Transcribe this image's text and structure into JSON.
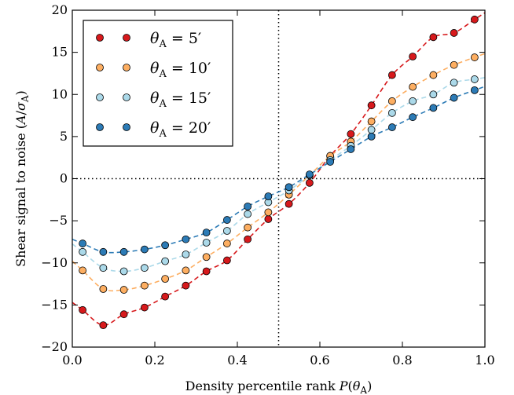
{
  "chart_data": {
    "type": "scatter",
    "xlabel": "Density percentile rank P(θ_A)",
    "xlabel_parts": {
      "main": "Density percentile rank ",
      "var": "P",
      "open": "(",
      "theta": "θ",
      "sub": "A",
      "close": ")"
    },
    "ylabel": "Shear signal to noise (A/σ_A)",
    "ylabel_parts": {
      "main": "Shear signal to noise ",
      "open": "(",
      "A": "A",
      "slash": "/",
      "sigma": "σ",
      "sub": "A",
      "close": ")"
    },
    "xlim": [
      0.0,
      1.0
    ],
    "ylim": [
      -20,
      20
    ],
    "xticks": [
      "0.0",
      "0.2",
      "0.4",
      "0.6",
      "0.8",
      "1.0"
    ],
    "yticks": [
      "−20",
      "−15",
      "−10",
      "−5",
      "0",
      "5",
      "10",
      "15",
      "20"
    ],
    "reference_lines": {
      "vertical_x": 0.5,
      "horizontal_y": 0
    },
    "legend_position": "top-left",
    "x": [
      0.025,
      0.075,
      0.125,
      0.175,
      0.225,
      0.275,
      0.325,
      0.375,
      0.425,
      0.475,
      0.525,
      0.575,
      0.625,
      0.675,
      0.725,
      0.775,
      0.825,
      0.875,
      0.925,
      0.975
    ],
    "series": [
      {
        "name": "θ_A = 5′",
        "legend_var": "θ",
        "legend_sub": "A",
        "legend_eq": " = 5′",
        "color": "#d7191c",
        "values": [
          -15.6,
          -17.4,
          -16.1,
          -15.3,
          -14.0,
          -12.7,
          -11.0,
          -9.7,
          -7.2,
          -4.8,
          -3.0,
          -0.5,
          2.7,
          5.3,
          8.7,
          12.3,
          14.5,
          16.8,
          17.3,
          18.9
        ]
      },
      {
        "name": "θ_A = 10′",
        "legend_var": "θ",
        "legend_sub": "A",
        "legend_eq": " = 10′",
        "color": "#fdae61",
        "values": [
          -10.9,
          -13.1,
          -13.2,
          -12.7,
          -11.9,
          -10.9,
          -9.3,
          -7.7,
          -5.8,
          -4.0,
          -1.9,
          0.4,
          2.7,
          4.4,
          6.8,
          9.2,
          10.9,
          12.3,
          13.5,
          14.4
        ]
      },
      {
        "name": "θ_A = 15′",
        "legend_var": "θ",
        "legend_sub": "A",
        "legend_eq": " = 15′",
        "color": "#abd9e9",
        "values": [
          -8.7,
          -10.6,
          -11.0,
          -10.6,
          -9.8,
          -9.0,
          -7.6,
          -6.2,
          -4.2,
          -2.8,
          -1.4,
          0.4,
          2.2,
          3.9,
          5.8,
          7.8,
          9.2,
          10.0,
          11.4,
          11.8
        ]
      },
      {
        "name": "θ_A = 20′",
        "legend_var": "θ",
        "legend_sub": "A",
        "legend_eq": " = 20′",
        "color": "#2c7bb6",
        "values": [
          -7.7,
          -8.7,
          -8.7,
          -8.4,
          -7.9,
          -7.2,
          -6.4,
          -4.9,
          -3.3,
          -2.1,
          -1.0,
          0.5,
          2.0,
          3.5,
          5.0,
          6.1,
          7.3,
          8.4,
          9.6,
          10.5
        ]
      }
    ]
  }
}
